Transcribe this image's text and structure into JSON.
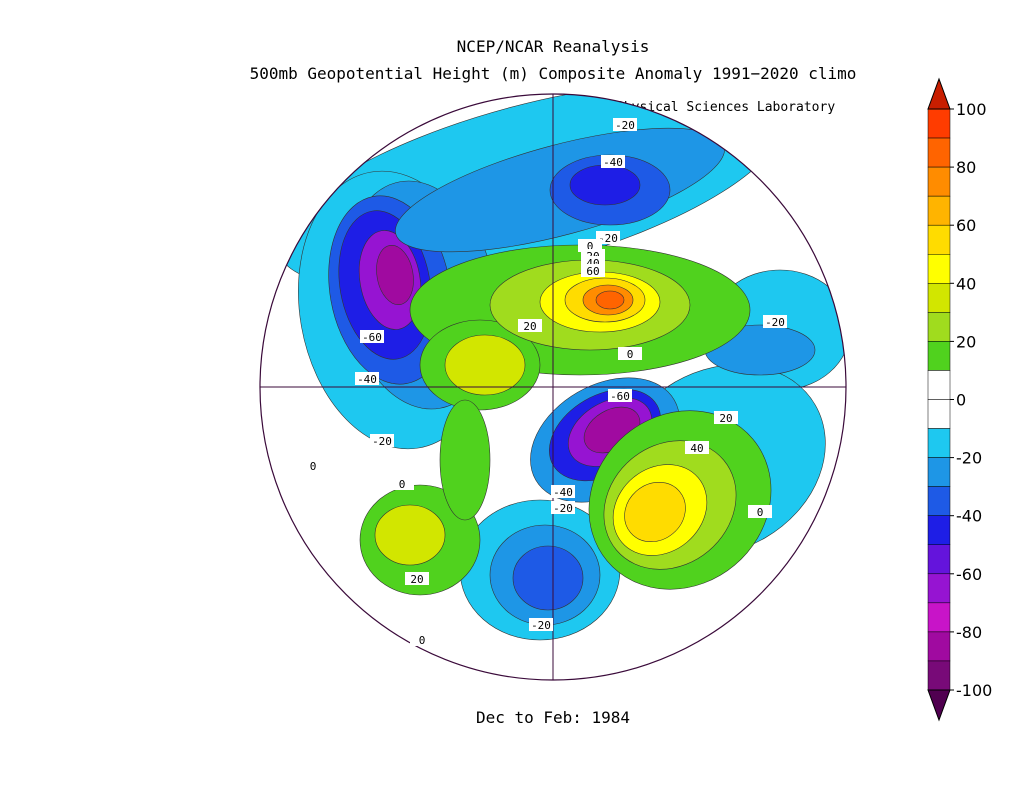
{
  "header": {
    "title": "NCEP/NCAR Reanalysis",
    "subtitle": "500mb Geopotential Height (m) Composite Anomaly 1991−2020 climo",
    "credit": "NOAA Physical Sciences Laboratory"
  },
  "footer": "Dec to Feb: 1984",
  "colorbar": {
    "ticks": [
      100,
      80,
      60,
      40,
      20,
      0,
      -20,
      -40,
      -60,
      -80,
      -100
    ],
    "colors": [
      "#ff3c00",
      "#ff6400",
      "#ff8c00",
      "#ffb400",
      "#ffdc00",
      "#ffff00",
      "#d2e600",
      "#a0dc1e",
      "#50d21e",
      "#ffffff",
      "#ffffff",
      "#1ec8f0",
      "#1e96e6",
      "#1e5ae6",
      "#1e1ee6",
      "#6414dc",
      "#9614d2",
      "#c814c8",
      "#a00aa0",
      "#780a78"
    ],
    "over_color": "#c81e00",
    "under_color": "#500050"
  },
  "contour_labels": [
    "-20",
    "-40",
    "-20",
    "0",
    "20",
    "40",
    "60",
    "20",
    "0",
    "-20",
    "-60",
    "-40",
    "-20",
    "0",
    "0",
    "-60",
    "-40",
    "-20",
    "20",
    "40",
    "0",
    "20",
    "-20",
    "0"
  ]
}
